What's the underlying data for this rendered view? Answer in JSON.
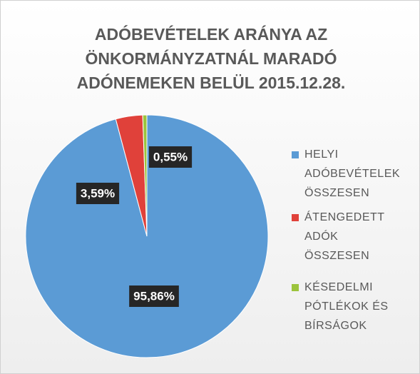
{
  "chart_data": {
    "type": "pie",
    "title": "ADÓBEVÉTELEK ARÁNYA AZ ÖNKORMÁNYZATNÁL MARADÓ ADÓNEMEKEN BELÜL 2015.12.28.",
    "categories": [
      "HELYI ADÓBEVÉTELEK ÖSSZESEN",
      "ÁTENGEDETT ADÓK ÖSSZESEN",
      "KÉSEDELMI PÓTLÉKOK ÉS BÍRSÁGOK"
    ],
    "values": [
      95.86,
      3.59,
      0.55
    ],
    "value_labels": [
      "95,86%",
      "3,59%",
      "0,55%"
    ],
    "colors": [
      "#5b9bd5",
      "#e0413a",
      "#9cc43c"
    ],
    "legend": "right"
  }
}
